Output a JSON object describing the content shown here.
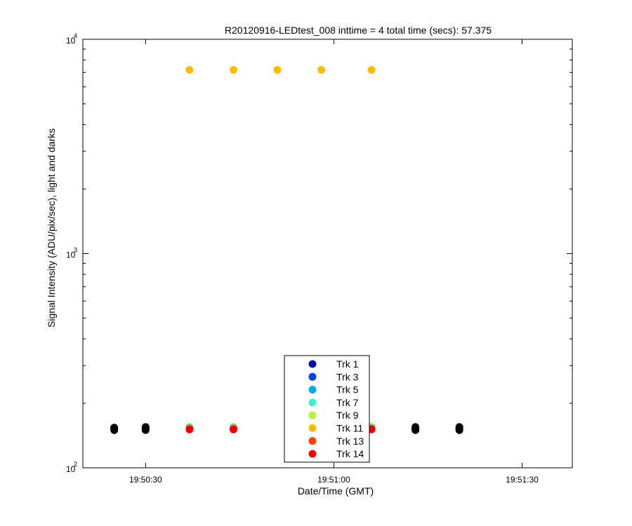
{
  "chart_data": {
    "type": "scatter",
    "title": "R20120916-LEDtest_008 inttime = 4 total time (secs): 57.375",
    "xlabel": "Date/Time (GMT)",
    "ylabel": "Signal Intensity (ADU/pix/sec), light and darks",
    "y_scale": "log",
    "ylim": [
      100,
      10000
    ],
    "xlim": [
      "19:50:20",
      "19:51:38"
    ],
    "x_ticks": [
      "19:50:30",
      "19:51:00",
      "19:51:30"
    ],
    "y_ticks": [
      {
        "value": 100,
        "base": "10",
        "exp": "2"
      },
      {
        "value": 1000,
        "base": "10",
        "exp": "3"
      },
      {
        "value": 10000,
        "base": "10",
        "exp": "4"
      }
    ],
    "legend_position": "bottom-center",
    "series": [
      {
        "name": "Trk 1",
        "color": "#0011aa",
        "x": [
          "19:50:37",
          "19:50:44",
          "19:51:06"
        ],
        "y": [
          154,
          154,
          154
        ]
      },
      {
        "name": "Trk 3",
        "color": "#0044ee",
        "x": [
          "19:50:37",
          "19:50:44",
          "19:51:06"
        ],
        "y": [
          154,
          154,
          154
        ]
      },
      {
        "name": "Trk 5",
        "color": "#00aaee",
        "x": [
          "19:50:37",
          "19:50:44",
          "19:51:06"
        ],
        "y": [
          154,
          154,
          154
        ]
      },
      {
        "name": "Trk 7",
        "color": "#44eecc",
        "x": [
          "19:50:37",
          "19:50:44",
          "19:51:06"
        ],
        "y": [
          153,
          153,
          153
        ]
      },
      {
        "name": "Trk 9",
        "color": "#bbee44",
        "x": [
          "19:50:37",
          "19:50:44",
          "19:51:06"
        ],
        "y": [
          153,
          153,
          153
        ]
      },
      {
        "name": "Trk 11",
        "color": "#ffbb00",
        "x": [
          "19:50:37",
          "19:50:44",
          "19:50:51",
          "19:50:58",
          "19:51:06"
        ],
        "y": [
          7200,
          7200,
          7200,
          7200,
          7200
        ]
      },
      {
        "name": "Trk 13",
        "color": "#ff4400",
        "x": [
          "19:50:37",
          "19:50:44",
          "19:51:06"
        ],
        "y": [
          152,
          152,
          152
        ]
      },
      {
        "name": "Trk 14",
        "color": "#ee0000",
        "x": [
          "19:50:37",
          "19:50:44",
          "19:51:06"
        ],
        "y": [
          151,
          151,
          151
        ]
      },
      {
        "color": "#000000",
        "x": [
          "19:50:25",
          "19:50:25",
          "19:50:25",
          "19:50:30",
          "19:50:30",
          "19:50:30",
          "19:51:13",
          "19:51:13",
          "19:51:13",
          "19:51:20",
          "19:51:20",
          "19:51:20"
        ],
        "y": [
          150,
          152,
          154,
          150,
          152,
          155,
          150,
          152,
          155,
          150,
          152,
          155
        ]
      }
    ]
  }
}
